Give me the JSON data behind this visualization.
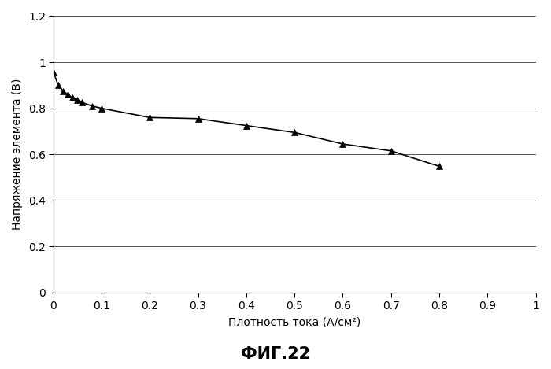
{
  "x": [
    0.001,
    0.01,
    0.02,
    0.03,
    0.04,
    0.05,
    0.06,
    0.08,
    0.1,
    0.2,
    0.3,
    0.4,
    0.5,
    0.6,
    0.7,
    0.8
  ],
  "y": [
    0.955,
    0.9,
    0.875,
    0.86,
    0.845,
    0.835,
    0.825,
    0.81,
    0.8,
    0.76,
    0.755,
    0.725,
    0.695,
    0.645,
    0.615,
    0.548
  ],
  "xlabel": "Плотность тока (А/см²)",
  "ylabel": "Напряжение элемента (В)",
  "caption": "ФИГ.22",
  "xlim": [
    0,
    1.0
  ],
  "ylim": [
    0,
    1.2
  ],
  "xticks": [
    0,
    0.1,
    0.2,
    0.3,
    0.4,
    0.5,
    0.6,
    0.7,
    0.8,
    0.9,
    1.0
  ],
  "yticks": [
    0,
    0.2,
    0.4,
    0.6,
    0.8,
    1.0,
    1.2
  ],
  "line_color": "#000000",
  "marker": "^",
  "marker_color": "#000000",
  "marker_size": 6,
  "background_color": "#ffffff",
  "grid_color": "#555555",
  "font_size_ticks": 10,
  "font_size_label": 10,
  "font_size_caption": 15
}
